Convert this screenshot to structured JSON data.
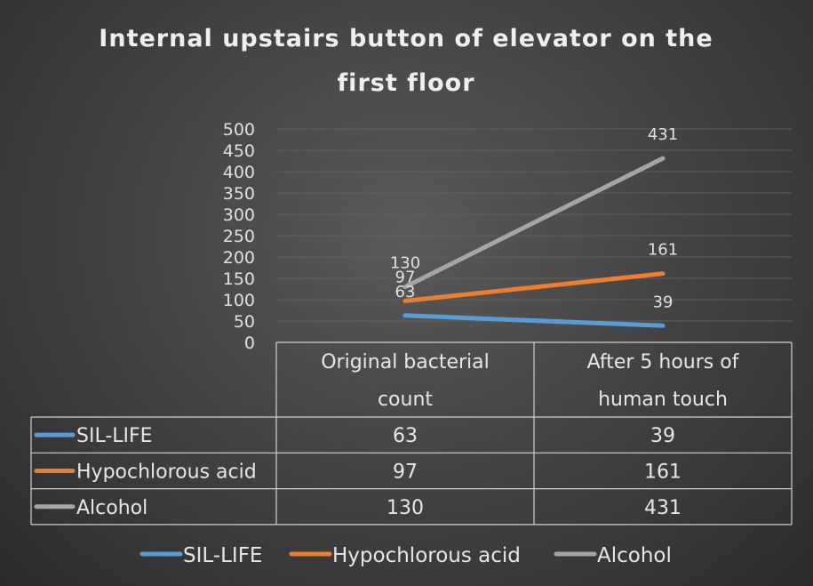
{
  "chart_data": {
    "type": "line",
    "title_lines": [
      "Internal upstairs button of elevator on the",
      "first floor"
    ],
    "categories": [
      [
        "Original bacterial",
        "count"
      ],
      [
        "After 5 hours of",
        "human touch"
      ]
    ],
    "series": [
      {
        "name": "SIL-LIFE",
        "values": [
          63,
          39
        ],
        "color": "#5b9bd5"
      },
      {
        "name": "Hypochlorous acid",
        "values": [
          97,
          161
        ],
        "color": "#ed7d31"
      },
      {
        "name": "Alcohol",
        "values": [
          130,
          431
        ],
        "color": "#a5a5a5"
      }
    ],
    "ylim": [
      0,
      500
    ],
    "yticks": [
      0,
      50,
      100,
      150,
      200,
      250,
      300,
      350,
      400,
      450,
      500
    ],
    "grid": true,
    "data_table": true,
    "legend": "bottom"
  }
}
